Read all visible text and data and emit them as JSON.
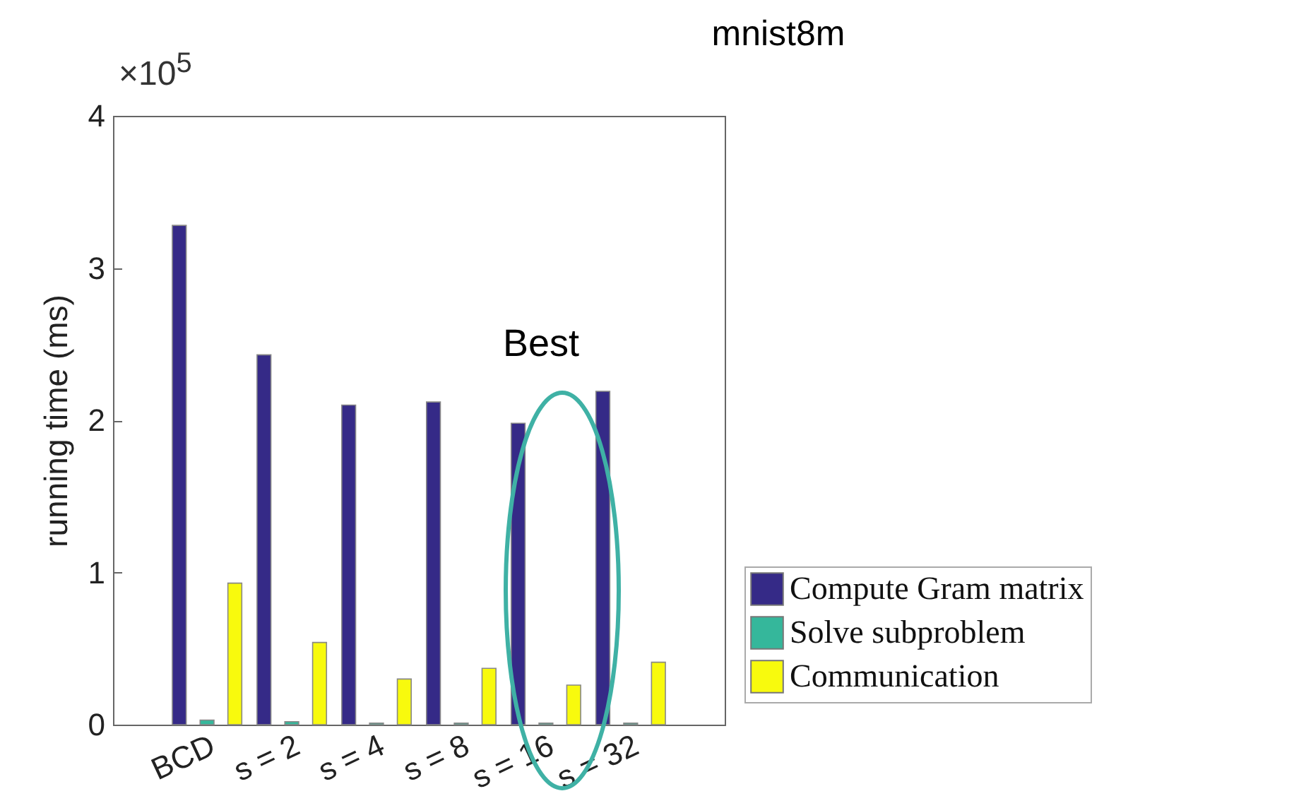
{
  "chart_data": {
    "type": "bar",
    "title": "mnist8m",
    "ylabel": "running time (ms)",
    "categories": [
      "BCD",
      "s = 2",
      "s = 4",
      "s = 8",
      "s = 16",
      "s = 32"
    ],
    "series": [
      {
        "name": "Compute Gram matrix",
        "color": "#352a87",
        "values": [
          3.28,
          2.43,
          2.1,
          2.12,
          1.98,
          2.19
        ]
      },
      {
        "name": "Solve subproblem",
        "color": "#35b79b",
        "values": [
          0.03,
          0.02,
          0.01,
          0.01,
          0.01,
          0.01
        ]
      },
      {
        "name": "Communication",
        "color": "#f8fa0d",
        "values": [
          0.93,
          0.54,
          0.3,
          0.37,
          0.26,
          0.41
        ]
      }
    ],
    "ylim": [
      0,
      4
    ],
    "yticks": [
      0,
      1,
      2,
      3,
      4
    ],
    "grid": false,
    "legend": "right",
    "annotations": [
      "×10$^{5}$",
      "Best"
    ]
  }
}
